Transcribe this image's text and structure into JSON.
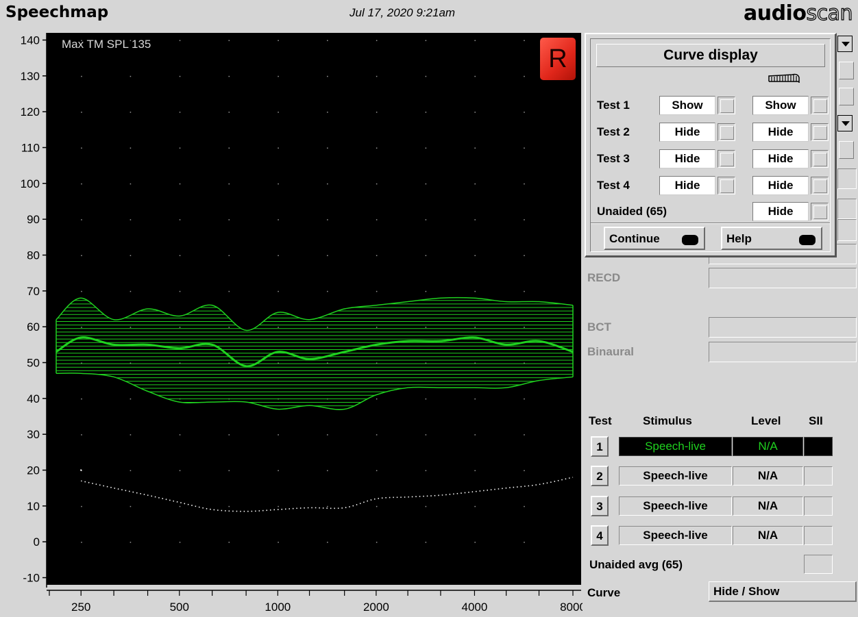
{
  "header": {
    "title": "Speechmap",
    "timestamp": "Jul 17, 2020 9:21am",
    "brand_bold": "audio",
    "brand_outline": "scan"
  },
  "chart_data": {
    "type": "line",
    "annotation": "Max TM SPL 135",
    "y_ticks": [
      140,
      130,
      120,
      110,
      100,
      90,
      80,
      70,
      60,
      50,
      40,
      30,
      20,
      10,
      0,
      -10
    ],
    "ylim": [
      -12,
      142
    ],
    "x_tick_labels": [
      "250",
      "500",
      "1000",
      "2000",
      "4000",
      "8000"
    ],
    "x_scale": "log",
    "xlim": [
      200,
      8000
    ],
    "grid": true,
    "background": "#000000",
    "series": [
      {
        "role": "speech-upper",
        "color": "#1fd11f",
        "x": [
          200,
          250,
          315,
          400,
          500,
          630,
          800,
          1000,
          1250,
          1600,
          2000,
          2500,
          3150,
          4000,
          5000,
          6300,
          8000
        ],
        "y": [
          62,
          68,
          62,
          65,
          63,
          66,
          59,
          64,
          62,
          65,
          66,
          67,
          68,
          68,
          67,
          67,
          66
        ]
      },
      {
        "role": "speech-average",
        "color": "#1fd11f",
        "x": [
          200,
          250,
          315,
          400,
          500,
          630,
          800,
          1000,
          1250,
          1600,
          2000,
          2500,
          3150,
          4000,
          5000,
          6300,
          8000
        ],
        "y": [
          53,
          57,
          55,
          55,
          54,
          55,
          49,
          53,
          51,
          53,
          55,
          56,
          56,
          57,
          55,
          56,
          53
        ]
      },
      {
        "role": "speech-lower",
        "color": "#1fd11f",
        "x": [
          200,
          250,
          315,
          400,
          500,
          630,
          800,
          1000,
          1250,
          1600,
          2000,
          2500,
          3150,
          4000,
          5000,
          6300,
          8000
        ],
        "y": [
          47,
          47,
          46,
          42,
          39,
          39,
          39,
          37,
          38,
          37,
          41,
          43,
          43,
          43,
          43,
          45,
          46
        ]
      },
      {
        "role": "threshold",
        "color": "#ffffff",
        "style": "dotted",
        "x": [
          250,
          315,
          400,
          500,
          630,
          800,
          1000,
          1250,
          1600,
          2000,
          2500,
          3150,
          4000,
          5000,
          6300,
          8000
        ],
        "y": [
          17,
          15,
          13,
          11,
          9,
          8.5,
          9,
          9.5,
          9.5,
          12,
          12.5,
          13,
          14,
          15,
          16,
          18
        ]
      }
    ]
  },
  "badge": {
    "ear": "R"
  },
  "panel": {
    "labels": {
      "recd": "RECD",
      "bct": "BCT",
      "binaural": "Binaural"
    }
  },
  "dialog": {
    "title": "Curve display",
    "rows": [
      {
        "label": "Test 1",
        "left": "Show",
        "right": "Show"
      },
      {
        "label": "Test 2",
        "left": "Hide",
        "right": "Hide"
      },
      {
        "label": "Test 3",
        "left": "Hide",
        "right": "Hide"
      },
      {
        "label": "Test 4",
        "left": "Hide",
        "right": "Hide"
      }
    ],
    "unaided_label": "Unaided (65)",
    "unaided_value": "Hide",
    "continue_label": "Continue",
    "help_label": "Help"
  },
  "tests": {
    "headers": {
      "test": "Test",
      "stimulus": "Stimulus",
      "level": "Level",
      "sii": "SII"
    },
    "rows": [
      {
        "num": "1",
        "stimulus": "Speech-live",
        "level": "N/A",
        "sii": ""
      },
      {
        "num": "2",
        "stimulus": "Speech-live",
        "level": "N/A",
        "sii": ""
      },
      {
        "num": "3",
        "stimulus": "Speech-live",
        "level": "N/A",
        "sii": ""
      },
      {
        "num": "4",
        "stimulus": "Speech-live",
        "level": "N/A",
        "sii": ""
      }
    ],
    "unaided_avg_label": "Unaided avg (65)",
    "curve_label": "Curve",
    "curve_button": "Hide / Show"
  }
}
